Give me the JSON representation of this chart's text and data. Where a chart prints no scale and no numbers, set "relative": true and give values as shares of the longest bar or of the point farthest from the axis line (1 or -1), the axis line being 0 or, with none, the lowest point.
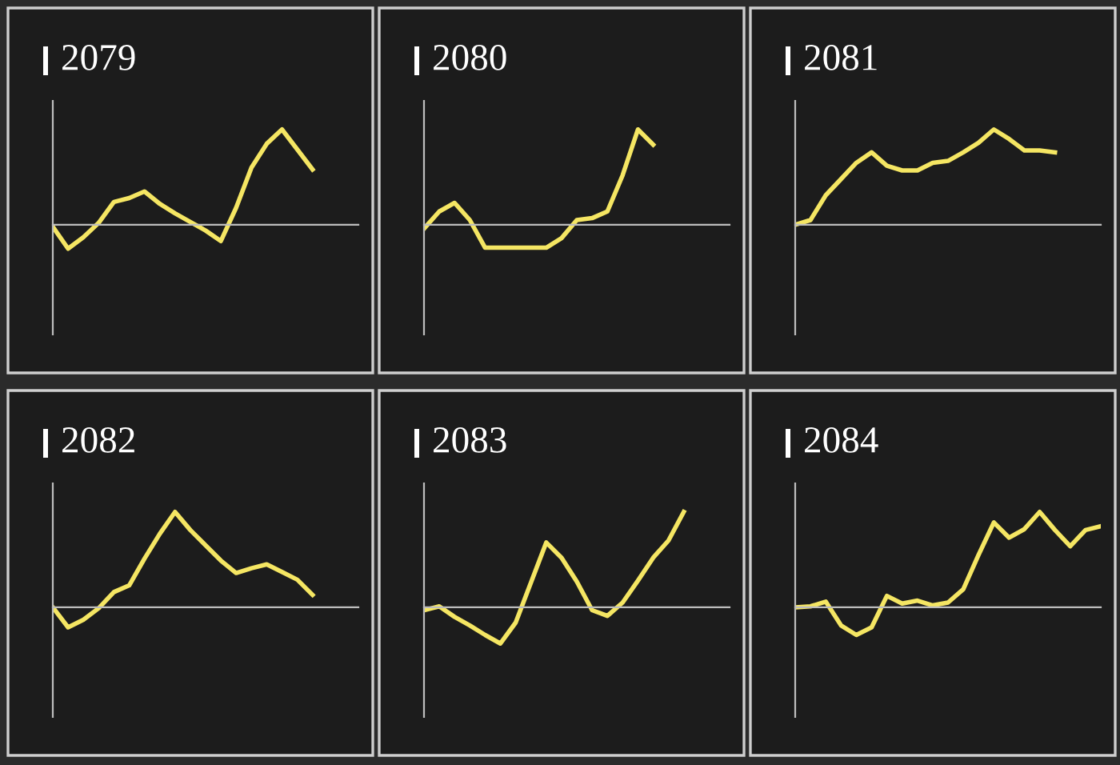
{
  "chart_data": [
    {
      "type": "line",
      "title": "2079",
      "relative": true,
      "categories": [
        null,
        null,
        null,
        null,
        null,
        null,
        null,
        null,
        null,
        null,
        null,
        null,
        null,
        null,
        null,
        null,
        null,
        null,
        null,
        null,
        null
      ],
      "series": [
        {
          "color": "#f5e663",
          "values": [
            -0.02,
            -0.25,
            -0.13,
            0.02,
            0.24,
            0.28,
            0.35,
            0.22,
            0.12,
            0.03,
            -0.06,
            -0.17,
            0.18,
            0.6,
            0.85,
            1.0,
            0.79,
            0.58,
            null,
            null,
            null
          ]
        }
      ],
      "marker": "none",
      "line_style": "solid"
    },
    {
      "type": "line",
      "title": "2080",
      "relative": true,
      "categories": [
        null,
        null,
        null,
        null,
        null,
        null,
        null,
        null,
        null,
        null,
        null,
        null,
        null,
        null,
        null,
        null,
        null,
        null,
        null,
        null,
        null
      ],
      "series": [
        {
          "color": "#f5e663",
          "values": [
            -0.04,
            0.14,
            0.23,
            0.05,
            -0.24,
            -0.24,
            -0.24,
            -0.24,
            -0.24,
            -0.14,
            0.05,
            0.07,
            0.14,
            0.52,
            1.0,
            0.84,
            null,
            null,
            null,
            null,
            null
          ]
        }
      ],
      "marker": "none",
      "line_style": "solid"
    },
    {
      "type": "line",
      "title": "2081",
      "relative": true,
      "categories": [
        null,
        null,
        null,
        null,
        null,
        null,
        null,
        null,
        null,
        null,
        null,
        null,
        null,
        null,
        null,
        null,
        null,
        null,
        null,
        null,
        null
      ],
      "series": [
        {
          "color": "#f5e663",
          "values": [
            0,
            0.05,
            0.31,
            0.48,
            0.65,
            0.76,
            0.62,
            0.57,
            0.57,
            0.65,
            0.67,
            0.76,
            0.86,
            1.0,
            0.9,
            0.78,
            0.78,
            0.76,
            null,
            null,
            null
          ]
        }
      ],
      "marker": "none",
      "line_style": "solid"
    },
    {
      "type": "line",
      "title": "2082",
      "relative": true,
      "categories": [
        null,
        null,
        null,
        null,
        null,
        null,
        null,
        null,
        null,
        null,
        null,
        null,
        null,
        null,
        null,
        null,
        null,
        null,
        null,
        null,
        null
      ],
      "series": [
        {
          "color": "#f5e663",
          "values": [
            0,
            -0.21,
            -0.13,
            -0.01,
            0.16,
            0.23,
            0.51,
            0.77,
            1.0,
            0.81,
            0.65,
            0.49,
            0.36,
            0.41,
            0.45,
            0.37,
            0.29,
            0.13,
            null,
            null,
            null
          ]
        }
      ],
      "marker": "none",
      "line_style": "solid"
    },
    {
      "type": "line",
      "title": "2083",
      "relative": true,
      "categories": [
        null,
        null,
        null,
        null,
        null,
        null,
        null,
        null,
        null,
        null,
        null,
        null,
        null,
        null,
        null,
        null,
        null,
        null,
        null,
        null,
        null
      ],
      "series": [
        {
          "color": "#f5e663",
          "values": [
            -0.03,
            0.01,
            -0.1,
            -0.19,
            -0.29,
            -0.38,
            -0.16,
            0.26,
            0.68,
            0.52,
            0.27,
            -0.03,
            -0.09,
            0.05,
            0.28,
            0.52,
            0.7,
            1.0,
            null,
            null,
            null
          ]
        }
      ],
      "marker": "none",
      "line_style": "solid"
    },
    {
      "type": "line",
      "title": "2084",
      "relative": true,
      "categories": [
        null,
        null,
        null,
        null,
        null,
        null,
        null,
        null,
        null,
        null,
        null,
        null,
        null,
        null,
        null,
        null,
        null,
        null,
        null,
        null,
        null
      ],
      "series": [
        {
          "color": "#f5e663",
          "values": [
            0,
            0.01,
            0.06,
            -0.19,
            -0.29,
            -0.21,
            0.12,
            0.04,
            0.07,
            0.02,
            0.05,
            0.19,
            0.55,
            0.89,
            0.73,
            0.82,
            1.0,
            0.81,
            0.64,
            0.81,
            0.85
          ]
        }
      ],
      "marker": "none",
      "line_style": "solid"
    }
  ]
}
